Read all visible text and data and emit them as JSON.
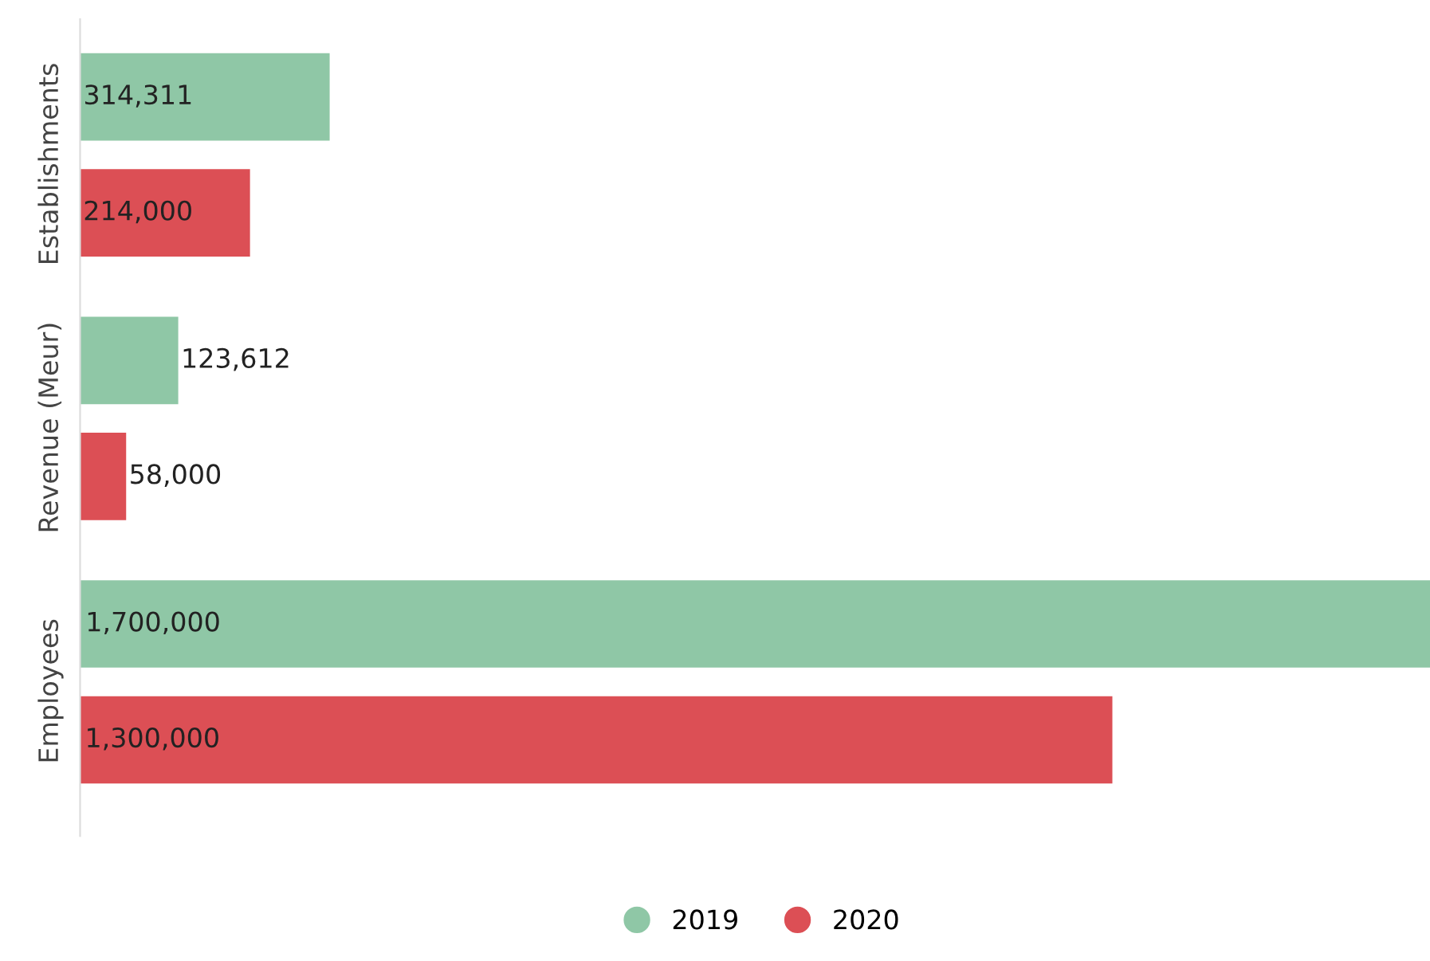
{
  "chart_data": {
    "type": "bar",
    "orientation": "horizontal",
    "categories": [
      "Establishments",
      "Revenue (Meur)",
      "Employees"
    ],
    "series": [
      {
        "name": "2019",
        "color": "#8fc7a6",
        "values": [
          314311,
          123612,
          1700000
        ],
        "value_labels": [
          "314,311",
          "123,612",
          "1,700,000"
        ]
      },
      {
        "name": "2020",
        "color": "#dc4f55",
        "values": [
          214000,
          58000,
          1300000
        ],
        "value_labels": [
          "214,000",
          "58,000",
          "1,300,000"
        ]
      }
    ],
    "legend": "bottom",
    "grid": false,
    "tick_labels": "y"
  }
}
